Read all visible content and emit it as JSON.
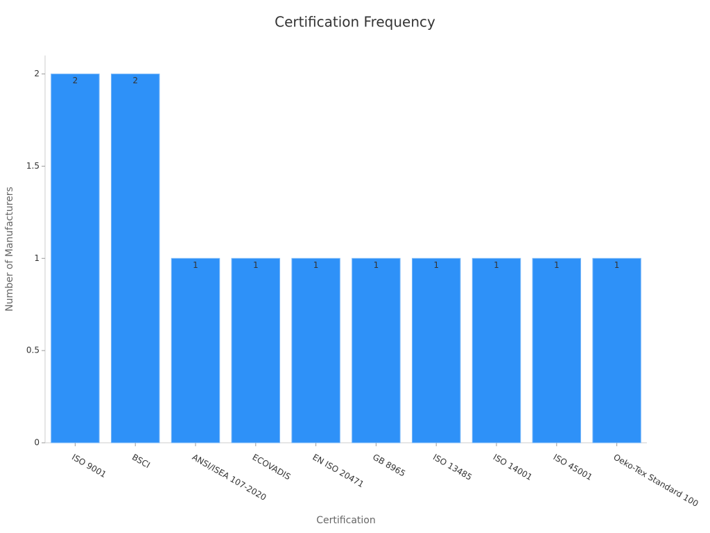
{
  "chart_data": {
    "type": "bar",
    "title": "Certification Frequency",
    "x_label": "Certification",
    "y_label": "Number of Manufacturers",
    "categories": [
      "ISO 9001",
      "BSCI",
      "ANSI/ISEA 107-2020",
      "ECOVADIS",
      "EN ISO 20471",
      "GB 8965",
      "ISO 13485",
      "ISO 14001",
      "ISO 45001",
      "Oeko-Tex Standard 100"
    ],
    "values": [
      2,
      2,
      1,
      1,
      1,
      1,
      1,
      1,
      1,
      1
    ],
    "color": "#2e91f8",
    "ylim": [
      0,
      2.1
    ],
    "yticks": [
      0,
      0.5,
      1,
      1.5,
      2
    ],
    "grid": false
  }
}
